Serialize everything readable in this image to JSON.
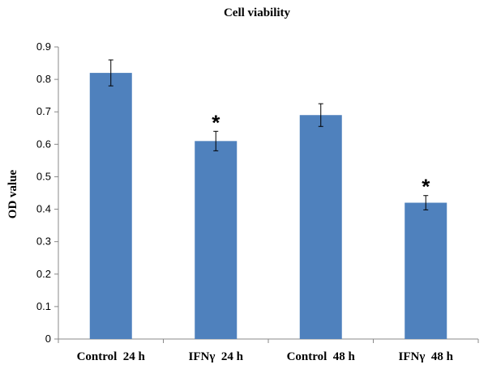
{
  "chart_data": {
    "type": "bar",
    "title": "Cell viability",
    "xlabel": "",
    "ylabel": "OD  value",
    "categories": [
      "Control  24 h",
      "IFNγ  24 h",
      "Control  48 h",
      "IFNγ  48 h"
    ],
    "values": [
      0.82,
      0.61,
      0.69,
      0.42
    ],
    "errors": [
      0.04,
      0.03,
      0.035,
      0.022
    ],
    "significance": [
      "",
      "*",
      "",
      "*"
    ],
    "ylim": [
      0,
      0.9
    ],
    "yticks": [
      0,
      0.1,
      0.2,
      0.3,
      0.4,
      0.5,
      0.6,
      0.7,
      0.8,
      0.9
    ],
    "grid": false,
    "legend": "none",
    "bar_color": "#4f81bd"
  }
}
